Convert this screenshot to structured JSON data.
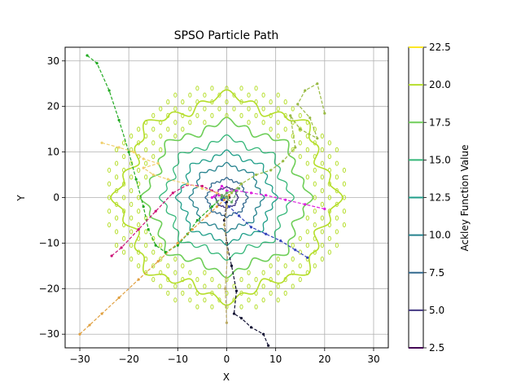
{
  "chart_data": {
    "type": "line",
    "title": "SPSO Particle Path",
    "xlabel": "X",
    "ylabel": "Y",
    "xlim": [
      -33,
      33
    ],
    "ylim": [
      -33,
      33
    ],
    "xticks": [
      -30,
      -20,
      -10,
      0,
      10,
      20,
      30
    ],
    "yticks": [
      -30,
      -20,
      -10,
      0,
      10,
      20,
      30
    ],
    "xtick_labels": [
      "−30",
      "−20",
      "−10",
      "0",
      "10",
      "20",
      "30"
    ],
    "ytick_labels": [
      "−30",
      "−20",
      "−10",
      "0",
      "10",
      "20",
      "30"
    ],
    "grid": true,
    "colorbar": {
      "label": "Ackley Function Value",
      "ticks": [
        2.5,
        5.0,
        7.5,
        10.0,
        12.5,
        15.0,
        17.5,
        20.0,
        22.5
      ],
      "tick_labels": [
        "2.5",
        "5.0",
        "7.5",
        "10.0",
        "12.5",
        "15.0",
        "17.5",
        "20.0",
        "22.5"
      ],
      "range": [
        2.5,
        22.5
      ]
    },
    "contour_levels": [
      {
        "value": 5.0,
        "color": "#443983",
        "radius": 2.2
      },
      {
        "value": 7.5,
        "color": "#31688e",
        "radius": 4.0
      },
      {
        "value": 10.0,
        "color": "#26828e",
        "radius": 7.0
      },
      {
        "value": 12.5,
        "color": "#1f9e89",
        "radius": 9.5
      },
      {
        "value": 15.0,
        "color": "#35b779",
        "radius": 12.5
      },
      {
        "value": 17.5,
        "color": "#6ece58",
        "radius": 16.0
      },
      {
        "value": 20.0,
        "color": "#b5de2b",
        "radius": 21.5
      }
    ],
    "series": [
      {
        "color": "#22aa22",
        "x": [
          -28.5,
          -26.5,
          -24,
          -22,
          -20,
          -18.5,
          -17,
          -16,
          -14.5,
          -12.5,
          -10,
          -8,
          -6,
          -3,
          -1,
          0.5
        ],
        "y": [
          31.2,
          29.5,
          23.5,
          17,
          10,
          4,
          -2,
          -7,
          -10.5,
          -12,
          -10.5,
          -8,
          -5,
          -2,
          0,
          0.5
        ]
      },
      {
        "color": "#e0a040",
        "x": [
          -30,
          -28,
          -25.5,
          -22,
          -18,
          -14,
          -10,
          -7,
          -4,
          -2,
          -0.5,
          0.5
        ],
        "y": [
          -30,
          -28,
          -25.5,
          -22,
          -18,
          -14,
          -10,
          -7,
          -4,
          -2,
          -0.5,
          0.5
        ]
      },
      {
        "color": "#cc1177",
        "x": [
          -23.5,
          -21.5,
          -18,
          -14.5,
          -11,
          -8,
          -5,
          -3,
          -1,
          0.5
        ],
        "y": [
          -12.8,
          -11,
          -7,
          -3,
          1,
          2.8,
          2.5,
          1.5,
          0.5,
          0
        ]
      },
      {
        "color": "#dd22dd",
        "x": [
          20,
          16,
          12,
          8,
          5,
          2,
          0,
          -1,
          -2,
          -3,
          -1.5,
          0
        ],
        "y": [
          -2.5,
          -1.5,
          -0.5,
          0.5,
          1,
          1.5,
          1.5,
          2.5,
          1,
          0,
          0.5,
          0
        ]
      },
      {
        "color": "#3344bb",
        "x": [
          16.5,
          14,
          11,
          8,
          5,
          2.5,
          0.5,
          -1,
          -0.5
        ],
        "y": [
          -13.2,
          -11.5,
          -9.5,
          -8,
          -6.5,
          -4,
          -2,
          -0.5,
          0
        ]
      },
      {
        "color": "#111133",
        "x": [
          8.5,
          7.5,
          5,
          3,
          1.5,
          2,
          1,
          0,
          -0.5,
          0,
          0.5
        ],
        "y": [
          -32.5,
          -30,
          -28.5,
          -26.5,
          -25.5,
          -20.5,
          -15,
          -10,
          -5,
          -1,
          0
        ]
      },
      {
        "color": "#99bb44",
        "x": [
          20,
          18.5,
          16,
          14.5,
          17,
          18.5,
          15,
          13,
          14,
          11.5,
          9,
          6,
          3,
          1
        ],
        "y": [
          18.5,
          25,
          23.5,
          20.5,
          17.5,
          13,
          15,
          18,
          11,
          8,
          6,
          5,
          3,
          1
        ]
      },
      {
        "color": "#f0d070",
        "x": [
          -25.5,
          -22,
          -19,
          -17,
          -14,
          -17,
          -15,
          -12,
          -8,
          -5,
          -2,
          0
        ],
        "y": [
          12,
          11,
          10,
          8.5,
          7.5,
          6.5,
          5,
          4,
          3,
          2,
          1,
          0
        ]
      },
      {
        "color": "#bbaa66",
        "x": [
          0,
          -0.3,
          0.2,
          -0.5,
          0,
          0.3
        ],
        "y": [
          -27.5,
          -20,
          -12,
          -6,
          -2,
          0
        ]
      },
      {
        "color": "#66aa66",
        "x": [
          -2,
          0,
          2.5,
          1,
          -1,
          0
        ],
        "y": [
          -1,
          1,
          2,
          -1,
          0.5,
          0
        ]
      }
    ]
  }
}
